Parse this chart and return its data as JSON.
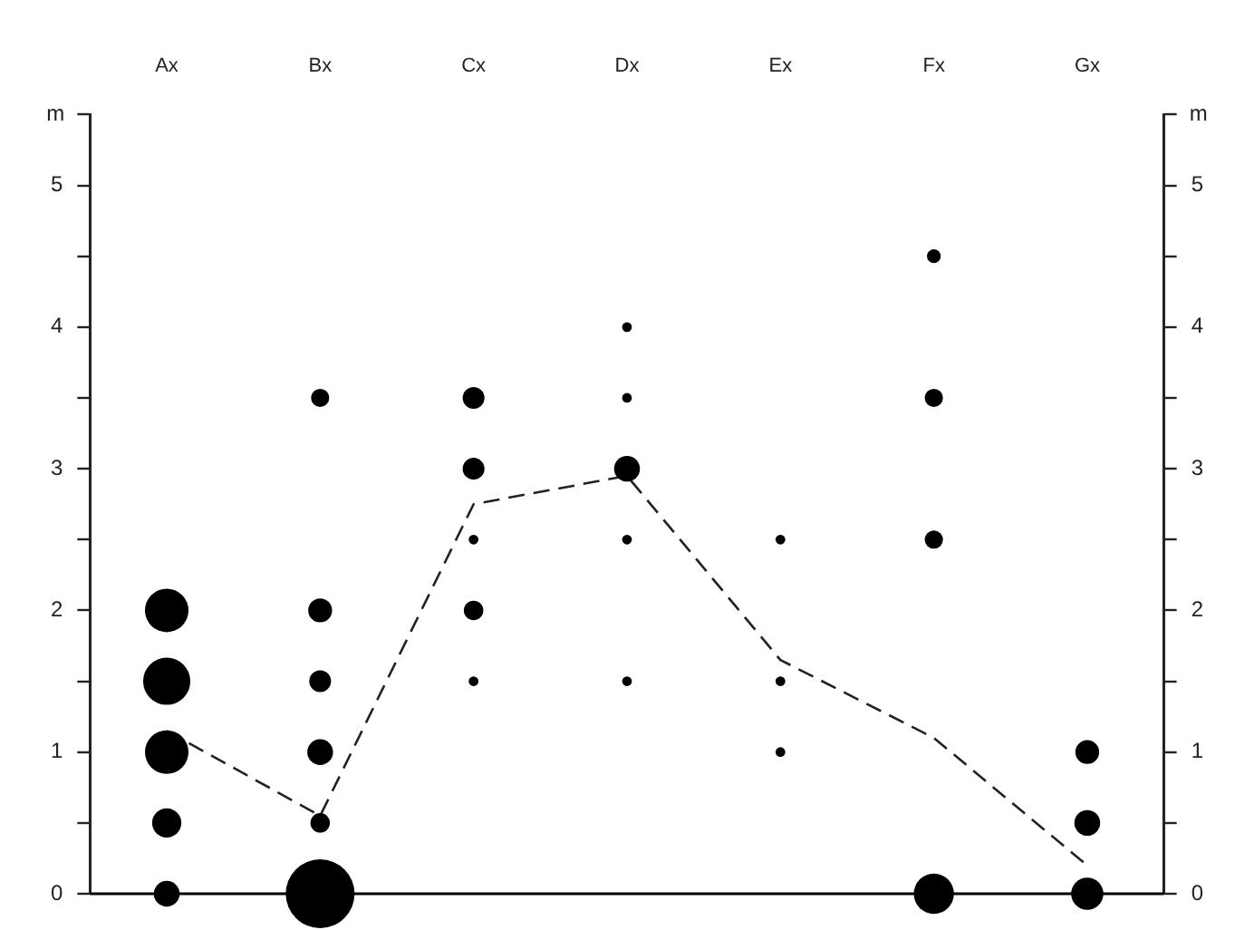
{
  "chart_data": {
    "type": "bubble",
    "ylabel": "m",
    "y2label": "m",
    "categories": [
      "Ax",
      "Bx",
      "Cx",
      "Dx",
      "Ex",
      "Fx",
      "Gx"
    ],
    "ylim": [
      0,
      5.5
    ],
    "yticks": [
      0,
      {
        "value": 0.5,
        "label": null
      },
      1,
      {
        "value": 1.5,
        "label": null
      },
      2,
      {
        "value": 2.5,
        "label": null
      },
      3,
      {
        "value": 3.5,
        "label": null
      },
      4,
      {
        "value": 4.5,
        "label": null
      },
      5,
      {
        "value": 5.5,
        "label": null
      }
    ],
    "y2lim": [
      0,
      5.5
    ],
    "y2ticks": [
      0,
      {
        "value": 0.5,
        "label": null
      },
      1,
      {
        "value": 1.5,
        "label": null
      },
      2,
      {
        "value": 2.5,
        "label": null
      },
      3,
      {
        "value": 3.5,
        "label": null
      },
      4,
      {
        "value": 4.5,
        "label": null
      },
      5,
      {
        "value": 5.5,
        "label": null
      }
    ],
    "grid": false,
    "legend": false,
    "ref_lines": [
      {
        "axis": "y",
        "value": 0,
        "color": "#000000"
      }
    ],
    "series": [
      {
        "color": "#000000",
        "x": [
          "Ax",
          "Ax",
          "Ax",
          "Ax",
          "Ax",
          "Bx",
          "Bx",
          "Bx",
          "Bx",
          "Bx",
          "Bx",
          "Cx",
          "Cx",
          "Cx",
          "Cx",
          "Cx",
          "Dx",
          "Dx",
          "Dx",
          "Dx",
          "Dx",
          "Ex",
          "Ex",
          "Ex",
          "Fx",
          "Fx",
          "Fx",
          "Fx",
          "Gx",
          "Gx",
          "Gx"
        ],
        "values": [
          0,
          0.5,
          1,
          1.5,
          2,
          0,
          0.5,
          1,
          1.5,
          2,
          3.5,
          1.5,
          2,
          2.5,
          3,
          3.5,
          1.5,
          2.5,
          3,
          3.5,
          4,
          1,
          1.5,
          2.5,
          0,
          2.5,
          3.5,
          4.5,
          0,
          0.5,
          1
        ],
        "sizes": [
          0.14,
          0.18,
          0.4,
          0.47,
          0.4,
          1,
          0.08,
          0.14,
          0.1,
          0.12,
          0.07,
          0.02,
          0.08,
          0.02,
          0.1,
          0.1,
          0.02,
          0.02,
          0.14,
          0.02,
          0.02,
          0.02,
          0.02,
          0.02,
          0.34,
          0.07,
          0.07,
          0.04,
          0.22,
          0.14,
          0.12
        ]
      },
      {
        "type": "line",
        "color": "#222222",
        "line_style": "dashed",
        "marker": "none",
        "values": [
          1.15,
          0.55,
          2.75,
          2.95,
          1.65,
          1.1,
          0.2
        ]
      }
    ]
  }
}
